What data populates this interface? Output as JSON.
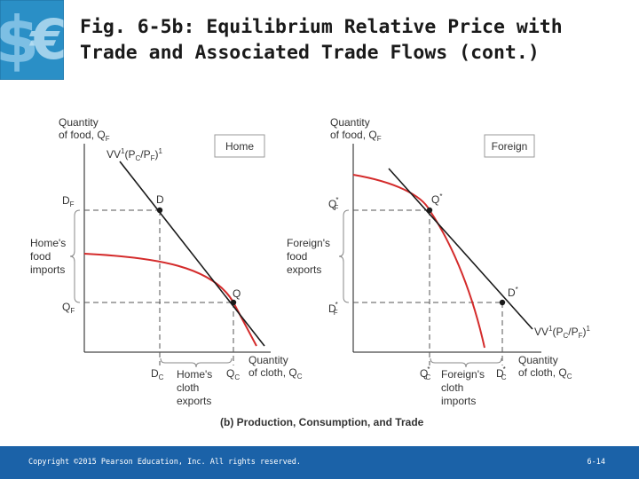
{
  "slide": {
    "title_line1": "Fig. 6-5b: Equilibrium Relative Price with",
    "title_line2": "Trade and Associated Trade Flows (cont.)",
    "footer_copyright": "Copyright ©2015 Pearson Education, Inc. All rights reserved.",
    "page_number": "6-14",
    "logo_icon": "dollar-euro-logo-icon"
  },
  "colors": {
    "logo_bg": "#2a8fc6",
    "footer_bg": "#1b62a8",
    "curve_red": "#d42b2b",
    "line_black": "#1a1a1a"
  },
  "figure": {
    "caption": "(b) Production, Consumption, and Trade",
    "home": {
      "box_label": "Home",
      "y_axis_line1": "Quantity",
      "y_axis_line2": "of food, Q",
      "y_axis_sub": "F",
      "x_axis_line1": "Quantity",
      "x_axis_line2": "of cloth, Q",
      "x_axis_sub": "C",
      "vv_label": "VV",
      "vv_sup": "1",
      "vv_ratio": "(P",
      "vv_c": "C",
      "vv_slash": "/P",
      "vv_f": "F",
      "vv_close": ")",
      "vv_close_sup": "1",
      "point_d": "D",
      "point_q": "Q",
      "df_label": "D",
      "df_sub": "F",
      "qf_label": "Q",
      "qf_sub": "F",
      "dc_label": "D",
      "dc_sub": "C",
      "qc_label": "Q",
      "qc_sub": "C",
      "imports_line1": "Home's",
      "imports_line2": "food",
      "imports_line3": "imports",
      "exports_line1": "Home's",
      "exports_line2": "cloth",
      "exports_line3": "exports"
    },
    "foreign": {
      "box_label": "Foreign",
      "y_axis_line1": "Quantity",
      "y_axis_line2": "of food, Q",
      "y_axis_sub": "F",
      "x_axis_line1": "Quantity",
      "x_axis_line2": "of cloth, Q",
      "x_axis_sub": "C",
      "vv_label": "VV",
      "vv_sup": "1",
      "vv_ratio": "(P",
      "vv_c": "C",
      "vv_slash": "/P",
      "vv_f": "F",
      "vv_close": ")",
      "vv_close_sup": "1",
      "point_q": "Q",
      "point_d": "D",
      "star": "*",
      "qf_label": "Q",
      "qf_sub": "F",
      "df_label": "D",
      "df_sub": "F",
      "qc_label": "Q",
      "qc_sub": "C",
      "dc_label": "D",
      "dc_sub": "C",
      "exports_line1": "Foreign's",
      "exports_line2": "food",
      "exports_line3": "exports",
      "imports_line1": "Foreign's",
      "imports_line2": "cloth",
      "imports_line3": "imports"
    }
  }
}
